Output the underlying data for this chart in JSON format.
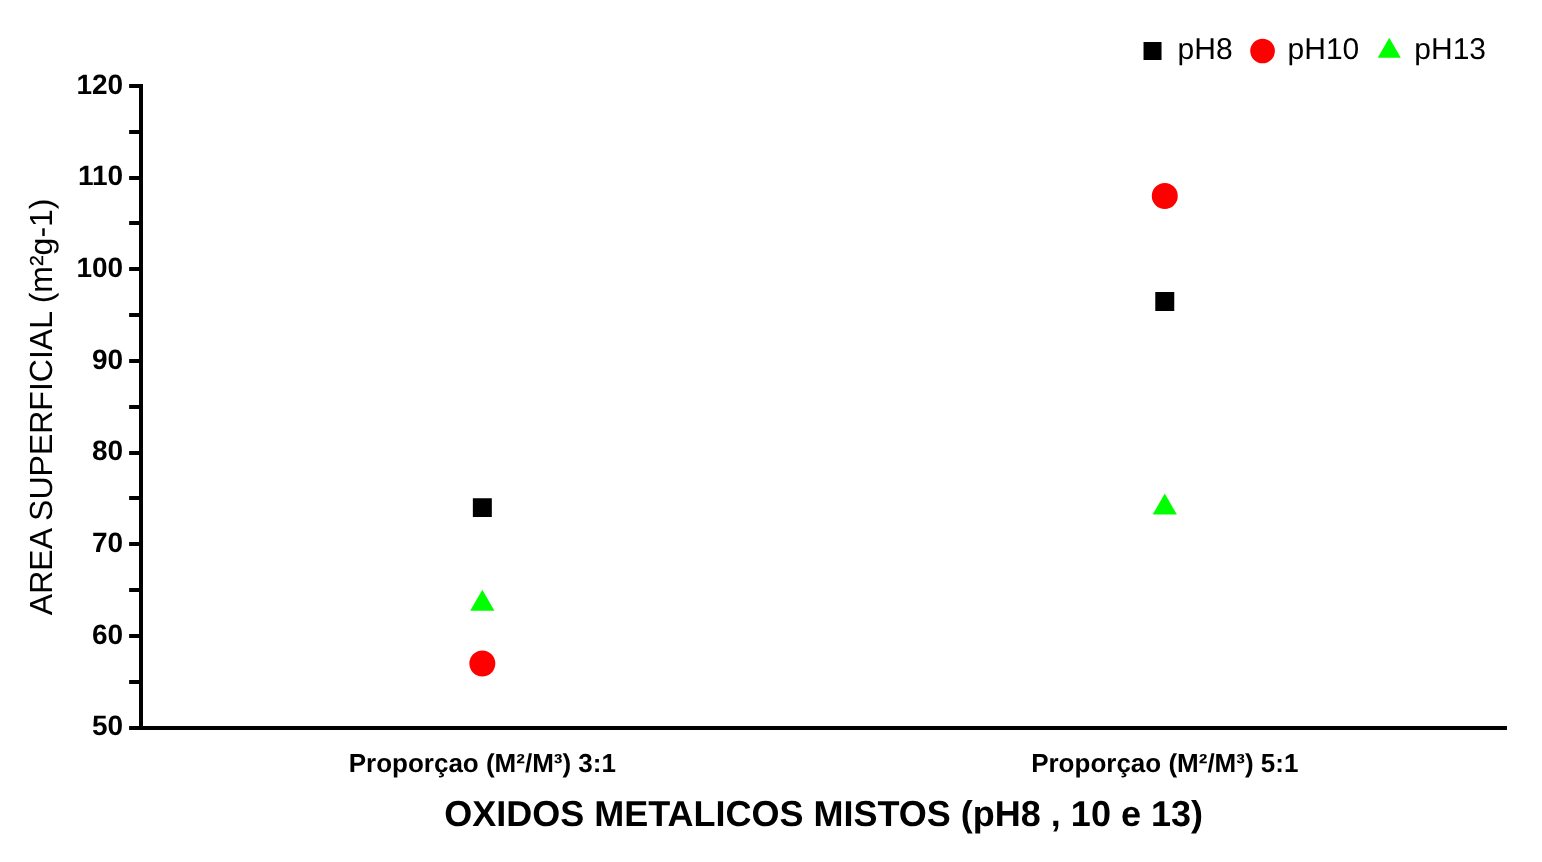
{
  "chart_data": {
    "type": "scatter",
    "xlabel": "OXIDOS METALICOS MISTOS (pH8 , 10 e 13)",
    "ylabel": "AREA SUPERFICIAL (m²g-1)",
    "categories": [
      "Proporçao (M²/M³) 3:1",
      "Proporçao (M²/M³) 5:1"
    ],
    "series": [
      {
        "name": "pH8",
        "color": "#000000",
        "marker": "square",
        "values": [
          74,
          96.5
        ]
      },
      {
        "name": "pH10",
        "color": "#ff0000",
        "marker": "circle",
        "values": [
          57,
          108
        ]
      },
      {
        "name": "pH13",
        "color": "#00ff00",
        "marker": "triangle",
        "values": [
          63.5,
          74
        ]
      }
    ],
    "ylim": [
      50,
      120
    ],
    "yticks": [
      50,
      {
        "value": 55,
        "label": null
      },
      60,
      {
        "value": 65,
        "label": null
      },
      70,
      {
        "value": 75,
        "label": null
      },
      80,
      {
        "value": 85,
        "label": null
      },
      90,
      {
        "value": 95,
        "label": null
      },
      100,
      {
        "value": 105,
        "label": null
      },
      110,
      {
        "value": 115,
        "label": null
      },
      120
    ],
    "grid": false,
    "legend": "top right"
  }
}
